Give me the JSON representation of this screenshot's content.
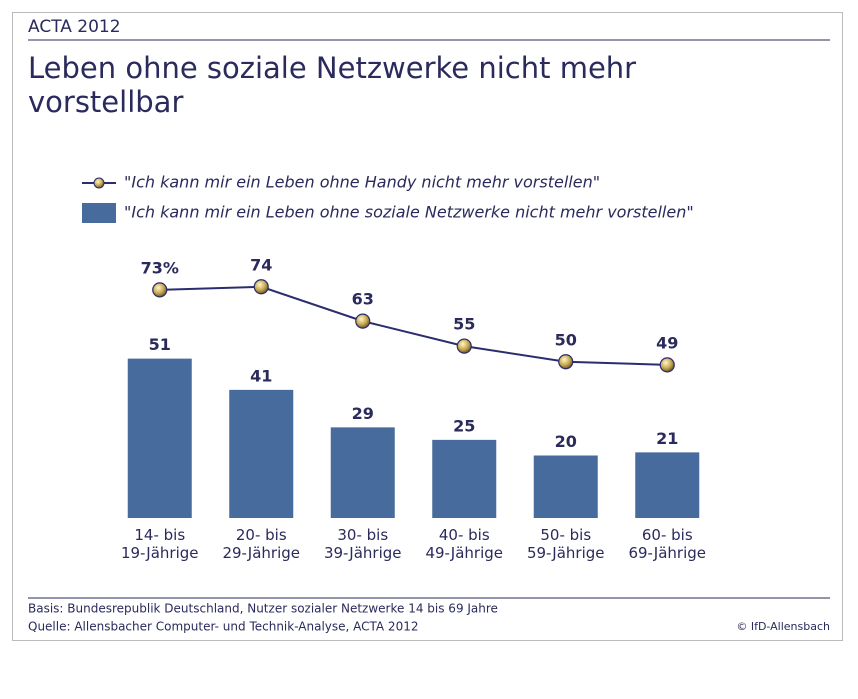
{
  "chart_data": {
    "type": "bar",
    "header": "ACTA 2012",
    "title": [
      "Leben ohne soziale Netzwerke nicht mehr",
      "vorstellbar"
    ],
    "categories": [
      "14- bis\n19-Jährige",
      "20- bis\n29-Jährige",
      "30- bis\n39-Jährige",
      "40- bis\n49-Jährige",
      "50- bis\n59-Jährige",
      "60- bis\n69-Jährige"
    ],
    "series": [
      {
        "name": "\"Ich kann mir ein Leben ohne Handy nicht mehr vorstellen\"",
        "type": "line",
        "color": "#2b2d6e",
        "values": [
          73,
          74,
          63,
          55,
          50,
          49
        ],
        "value_labels": [
          "73%",
          "74",
          "63",
          "55",
          "50",
          "49"
        ]
      },
      {
        "name": "\"Ich kann mir ein Leben ohne soziale Netzwerke nicht mehr vorstellen\"",
        "type": "bar",
        "color": "#476b9c",
        "values": [
          51,
          41,
          29,
          25,
          20,
          21
        ]
      }
    ],
    "ylim": [
      0,
      80
    ],
    "footnotes": [
      "Basis: Bundesrepublik Deutschland, Nutzer sozialer Netzwerke 14 bis 69 Jahre",
      "Quelle: Allensbacher Computer- und Technik-Analyse, ACTA 2012"
    ],
    "credit": "© IfD-Allensbach"
  }
}
